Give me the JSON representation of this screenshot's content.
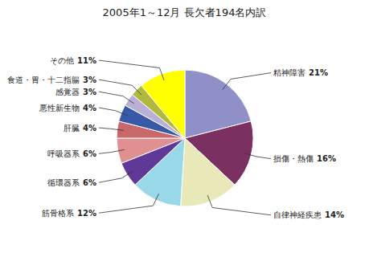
{
  "chart_data": {
    "type": "pie",
    "title": "2005年1～12月  長欠者194名内訳",
    "categories": [
      "精神障害",
      "損傷・熱傷",
      "自律神経疾患",
      "筋骨格系",
      "循環器系",
      "呼吸器系",
      "肝臓",
      "悪性新生物",
      "感覚器",
      "食道・胃・十二指腸",
      "その他"
    ],
    "values": [
      21,
      16,
      14,
      12,
      6,
      6,
      4,
      4,
      3,
      3,
      11
    ],
    "value_labels": [
      "21%",
      "16%",
      "14%",
      "12%",
      "6%",
      "6%",
      "4%",
      "4%",
      "3%",
      "3%",
      "11%"
    ],
    "colors": [
      "#9090c8",
      "#7a3060",
      "#e8e8b8",
      "#98d8e8",
      "#603898",
      "#e09090",
      "#c86868",
      "#3858a8",
      "#b8b0d8",
      "#b0b840",
      "#ffff00"
    ],
    "data_labels": true
  }
}
